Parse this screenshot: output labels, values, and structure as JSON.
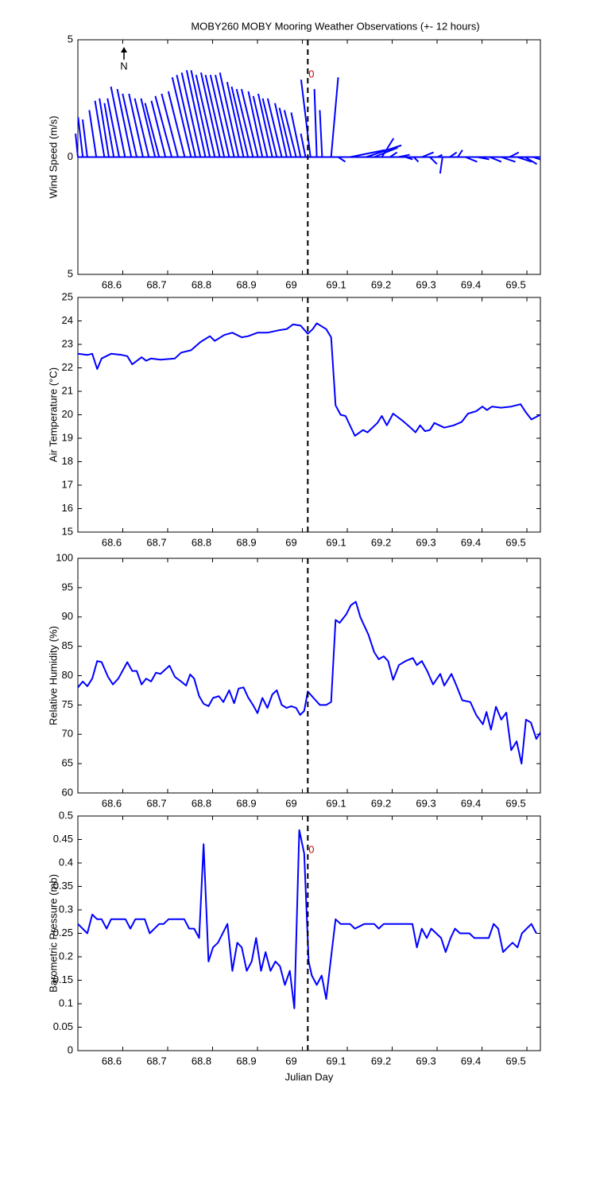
{
  "chart_data": [
    {
      "type": "stick",
      "title": "MOBY260 MOBY Mooring Weather Observations (+- 12 hours)",
      "ylabel": "Wind Speed (m/s)",
      "north_label": "N",
      "annotation": "0",
      "event_x": 69.012,
      "color": "#0000ff",
      "xlim": [
        68.5,
        69.53
      ],
      "xticks": [
        68.6,
        68.7,
        68.8,
        68.9,
        69,
        69.1,
        69.2,
        69.3,
        69.4,
        69.5
      ],
      "ylim": [
        -5,
        5
      ],
      "yticks": [
        {
          "value": -5,
          "label": "5"
        },
        0,
        5
      ],
      "x": [
        68.5,
        68.511,
        68.521,
        68.541,
        68.559,
        68.569,
        68.58,
        68.592,
        68.605,
        68.619,
        68.631,
        68.645,
        68.658,
        68.672,
        68.681,
        68.695,
        68.709,
        68.723,
        68.738,
        68.752,
        68.762,
        68.773,
        68.784,
        68.794,
        68.805,
        68.816,
        68.826,
        68.837,
        68.848,
        68.858,
        68.869,
        68.879,
        68.89,
        68.901,
        68.911,
        68.922,
        68.933,
        68.943,
        68.954,
        68.965,
        68.975,
        68.986,
        68.996,
        69.007,
        69.018,
        69.032,
        69.044,
        69.064,
        69.08,
        69.106,
        69.142,
        69.16,
        69.177,
        69.195,
        69.213,
        69.23,
        69.248,
        69.266,
        69.284,
        69.301,
        69.312,
        69.328,
        69.346,
        69.363,
        69.39,
        69.417,
        69.443,
        69.461,
        69.479,
        69.496,
        69.514
      ],
      "u": [
        -0.1,
        -0.2,
        -0.2,
        -0.3,
        -0.4,
        -0.4,
        -0.4,
        -0.5,
        -0.6,
        -0.6,
        -0.6,
        -0.6,
        -0.6,
        -0.6,
        -0.6,
        -0.6,
        -0.7,
        -0.7,
        -0.7,
        -0.8,
        -0.8,
        -0.8,
        -0.8,
        -0.8,
        -0.8,
        -0.8,
        -0.8,
        -0.8,
        -0.8,
        -0.8,
        -0.7,
        -0.7,
        -0.7,
        -0.7,
        -0.6,
        -0.6,
        -0.6,
        -0.6,
        -0.6,
        -0.5,
        -0.5,
        -0.5,
        -0.4,
        -0.2,
        -0.4,
        -0.1,
        -0.1,
        0.3,
        0.3,
        1.5,
        1.5,
        1.0,
        0.5,
        0.3,
        0.5,
        0.3,
        0.2,
        0.5,
        0.3,
        0.2,
        -0.1,
        0.3,
        0.2,
        0.5,
        0.5,
        0.5,
        0.6,
        0.4,
        0.6,
        0.5,
        0.3
      ],
      "v": [
        1.0,
        1.7,
        1.6,
        2.0,
        2.4,
        2.5,
        2.3,
        2.5,
        3.0,
        2.9,
        2.7,
        2.7,
        2.5,
        2.5,
        2.3,
        2.4,
        2.6,
        2.7,
        2.8,
        3.4,
        3.5,
        3.6,
        3.7,
        3.7,
        3.5,
        3.6,
        3.5,
        3.5,
        3.5,
        3.6,
        3.2,
        3.0,
        2.9,
        2.9,
        2.8,
        2.6,
        2.7,
        2.5,
        2.5,
        2.3,
        2.1,
        2.0,
        1.9,
        1.0,
        3.3,
        2.9,
        2.0,
        3.4,
        -0.2,
        0.3,
        0.5,
        0.4,
        0.8,
        0.2,
        0.1,
        -0.1,
        -0.2,
        0.2,
        -0.3,
        0.1,
        -0.7,
        0.2,
        0.3,
        -0.2,
        -0.1,
        -0.2,
        -0.2,
        0.2,
        -0.2,
        -0.3,
        -0.1
      ]
    },
    {
      "type": "line",
      "ylabel": "Air Temperature (°C)",
      "event_x": 69.012,
      "color": "#0000ff",
      "xlim": [
        68.5,
        69.53
      ],
      "xticks": [
        68.6,
        68.7,
        68.8,
        68.9,
        69,
        69.1,
        69.2,
        69.3,
        69.4,
        69.5
      ],
      "ylim": [
        15,
        25
      ],
      "yticks": [
        15,
        16,
        17,
        18,
        19,
        20,
        21,
        22,
        23,
        24,
        25
      ],
      "x": [
        68.5,
        68.521,
        68.532,
        68.543,
        68.553,
        68.574,
        68.598,
        68.61,
        68.621,
        68.642,
        68.652,
        68.663,
        68.684,
        68.716,
        68.73,
        68.752,
        68.773,
        68.794,
        68.805,
        68.826,
        68.844,
        68.865,
        68.879,
        68.9,
        68.922,
        68.947,
        68.965,
        68.979,
        68.996,
        69.012,
        69.023,
        69.032,
        69.053,
        69.064,
        69.074,
        69.085,
        69.096,
        69.117,
        69.135,
        69.145,
        69.167,
        69.177,
        69.188,
        69.202,
        69.223,
        69.241,
        69.252,
        69.262,
        69.273,
        69.284,
        69.294,
        69.316,
        69.337,
        69.355,
        69.369,
        69.387,
        69.401,
        69.411,
        69.422,
        69.443,
        69.465,
        69.486,
        69.496,
        69.51,
        69.53
      ],
      "values": [
        22.6,
        22.55,
        22.6,
        21.95,
        22.4,
        22.6,
        22.55,
        22.5,
        22.15,
        22.45,
        22.3,
        22.4,
        22.35,
        22.4,
        22.65,
        22.75,
        23.1,
        23.35,
        23.15,
        23.4,
        23.5,
        23.3,
        23.35,
        23.5,
        23.5,
        23.6,
        23.65,
        23.85,
        23.8,
        23.45,
        23.65,
        23.9,
        23.65,
        23.3,
        20.4,
        20.0,
        19.95,
        19.1,
        19.35,
        19.25,
        19.65,
        19.95,
        19.55,
        20.05,
        19.75,
        19.45,
        19.25,
        19.55,
        19.3,
        19.35,
        19.65,
        19.45,
        19.55,
        19.7,
        20.05,
        20.15,
        20.35,
        20.2,
        20.35,
        20.3,
        20.35,
        20.45,
        20.15,
        19.8,
        20.0
      ]
    },
    {
      "type": "line",
      "ylabel": "Relative Humidity (%)",
      "event_x": 69.012,
      "color": "#0000ff",
      "xlim": [
        68.5,
        69.53
      ],
      "xticks": [
        68.6,
        68.7,
        68.8,
        68.9,
        69,
        69.1,
        69.2,
        69.3,
        69.4,
        69.5
      ],
      "ylim": [
        60,
        100
      ],
      "yticks": [
        60,
        65,
        70,
        75,
        80,
        85,
        90,
        95,
        100
      ],
      "x": [
        68.5,
        68.511,
        68.521,
        68.532,
        68.543,
        68.553,
        68.567,
        68.578,
        68.59,
        68.61,
        68.621,
        68.631,
        68.642,
        68.652,
        68.663,
        68.674,
        68.684,
        68.704,
        68.716,
        68.73,
        68.741,
        68.75,
        68.759,
        68.77,
        68.78,
        68.791,
        68.801,
        68.814,
        68.824,
        68.837,
        68.848,
        68.858,
        68.869,
        68.879,
        68.89,
        68.9,
        68.911,
        68.922,
        68.933,
        68.943,
        68.954,
        68.965,
        68.975,
        68.986,
        68.995,
        69.004,
        69.012,
        69.027,
        69.039,
        69.053,
        69.064,
        69.074,
        69.083,
        69.098,
        69.108,
        69.119,
        69.129,
        69.147,
        69.16,
        69.17,
        69.181,
        69.191,
        69.202,
        69.215,
        69.23,
        69.246,
        69.255,
        69.266,
        69.278,
        69.291,
        69.307,
        69.316,
        69.332,
        69.342,
        69.356,
        69.374,
        69.387,
        69.402,
        69.41,
        69.42,
        69.431,
        69.443,
        69.454,
        69.465,
        69.477,
        69.488,
        69.498,
        69.509,
        69.521,
        69.53
      ],
      "values": [
        78,
        79,
        78.2,
        79.5,
        82.5,
        82.3,
        79.8,
        78.5,
        79.5,
        82.3,
        80.8,
        80.8,
        78.5,
        79.5,
        79,
        80.5,
        80.3,
        81.7,
        79.8,
        79,
        78.3,
        80.2,
        79.5,
        76.5,
        75.2,
        74.8,
        76.2,
        76.5,
        75.5,
        77.5,
        75.3,
        77.8,
        78,
        76.3,
        75,
        73.6,
        76.2,
        74.5,
        76.8,
        77.5,
        75,
        74.5,
        74.8,
        74.5,
        73.3,
        74,
        77.3,
        76,
        75,
        75,
        75.5,
        89.5,
        89,
        90.5,
        92,
        92.6,
        90,
        87,
        84,
        82.8,
        83.3,
        82.5,
        79.3,
        81.8,
        82.5,
        83,
        81.8,
        82.5,
        80.8,
        78.5,
        80.3,
        78.3,
        80.3,
        78.5,
        75.8,
        75.5,
        73.3,
        71.7,
        73.8,
        70.8,
        74.7,
        72.5,
        73.7,
        67.3,
        68.8,
        65,
        72.5,
        72,
        69.2,
        70.3
      ]
    },
    {
      "type": "line",
      "ylabel": "Barometric Pressure (mb)",
      "xlabel": "Julian Day",
      "annotation": "0",
      "event_x": 69.012,
      "color": "#0000ff",
      "xlim": [
        68.5,
        69.53
      ],
      "xticks": [
        68.6,
        68.7,
        68.8,
        68.9,
        69,
        69.1,
        69.2,
        69.3,
        69.4,
        69.5
      ],
      "ylim": [
        0,
        0.5
      ],
      "yticks": [
        0,
        0.05,
        0.1,
        0.15,
        0.2,
        0.25,
        0.3,
        0.35,
        0.4,
        0.45,
        0.5
      ],
      "x": [
        68.5,
        68.521,
        68.532,
        68.543,
        68.553,
        68.564,
        68.574,
        68.606,
        68.617,
        68.628,
        68.649,
        68.66,
        68.681,
        68.691,
        68.702,
        68.737,
        68.748,
        68.759,
        68.77,
        68.78,
        68.791,
        68.801,
        68.812,
        68.833,
        68.844,
        68.855,
        68.865,
        68.876,
        68.887,
        68.897,
        68.908,
        68.918,
        68.929,
        68.94,
        68.95,
        68.961,
        68.972,
        68.982,
        68.993,
        69.004,
        69.014,
        69.021,
        69.032,
        69.043,
        69.053,
        69.064,
        69.074,
        69.085,
        69.106,
        69.117,
        69.138,
        69.16,
        69.17,
        69.181,
        69.245,
        69.255,
        69.266,
        69.277,
        69.287,
        69.298,
        69.309,
        69.319,
        69.33,
        69.34,
        69.351,
        69.362,
        69.372,
        69.383,
        69.415,
        69.426,
        69.436,
        69.447,
        69.457,
        69.468,
        69.479,
        69.489,
        69.51,
        69.521
      ],
      "values": [
        0.27,
        0.25,
        0.29,
        0.28,
        0.28,
        0.26,
        0.28,
        0.28,
        0.26,
        0.28,
        0.28,
        0.25,
        0.27,
        0.27,
        0.28,
        0.28,
        0.26,
        0.26,
        0.24,
        0.44,
        0.19,
        0.22,
        0.23,
        0.27,
        0.17,
        0.23,
        0.22,
        0.17,
        0.19,
        0.24,
        0.17,
        0.21,
        0.17,
        0.19,
        0.18,
        0.14,
        0.17,
        0.09,
        0.47,
        0.42,
        0.19,
        0.16,
        0.14,
        0.16,
        0.11,
        0.2,
        0.28,
        0.27,
        0.27,
        0.26,
        0.27,
        0.27,
        0.26,
        0.27,
        0.27,
        0.22,
        0.26,
        0.24,
        0.26,
        0.25,
        0.24,
        0.21,
        0.24,
        0.26,
        0.25,
        0.25,
        0.25,
        0.24,
        0.24,
        0.27,
        0.26,
        0.21,
        0.22,
        0.23,
        0.22,
        0.25,
        0.27,
        0.25
      ]
    }
  ]
}
